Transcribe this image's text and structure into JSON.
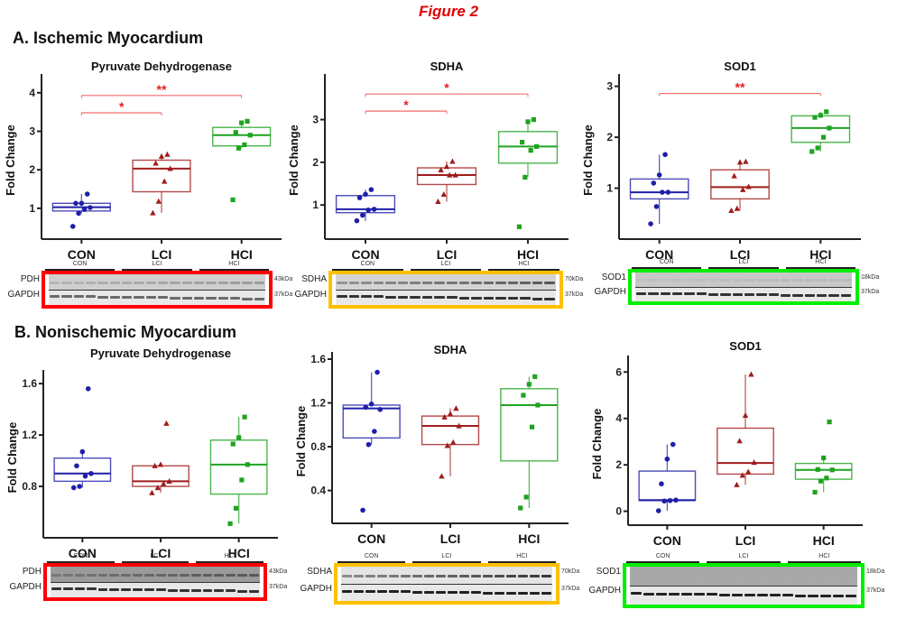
{
  "figure_title": "Figure 2",
  "sections": [
    {
      "title": "A. Ischemic Myocardium"
    },
    {
      "title": "B. Nonischemic Myocardium"
    }
  ],
  "colors": {
    "CON": "#1f1fa8",
    "LCI": "#a01c1c",
    "HCI": "#1fa31f",
    "significance": "#f26b6b",
    "frame_PDH": "#ff0000",
    "frame_SDHA": "#ffc000",
    "frame_SOD1": "#00ee00"
  },
  "chart_data": [
    {
      "type": "box",
      "section": "A",
      "title": "Pyruvate Dehydrogenase",
      "xlabel": "",
      "ylabel": "Fold Change",
      "categories": [
        "CON",
        "LCI",
        "HCI"
      ],
      "ylim": [
        0.2,
        4.3
      ],
      "yticks": [
        1,
        2,
        3,
        4
      ],
      "ytick_labels": [
        "1",
        "2",
        "3",
        "4"
      ],
      "grid": false,
      "series": [
        {
          "name": "CON",
          "marker": "circle",
          "points": [
            0.53,
            0.87,
            0.97,
            1.02,
            1.13,
            1.13,
            1.37
          ],
          "q1": 0.93,
          "median": 1.03,
          "q3": 1.13,
          "whisker_low": 0.87,
          "whisker_high": 1.37
        },
        {
          "name": "LCI",
          "marker": "triangle",
          "points": [
            0.88,
            1.18,
            1.7,
            2.03,
            2.17,
            2.35,
            2.4
          ],
          "q1": 1.43,
          "median": 2.03,
          "q3": 2.25,
          "whisker_low": 0.88,
          "whisker_high": 2.4
        },
        {
          "name": "HCI",
          "marker": "square",
          "points": [
            1.22,
            2.56,
            2.65,
            2.9,
            2.97,
            3.22,
            3.26
          ],
          "q1": 2.62,
          "median": 2.9,
          "q3": 3.1,
          "whisker_low": 2.56,
          "whisker_high": 3.26
        }
      ],
      "significance": [
        {
          "from": "CON",
          "to": "LCI",
          "y": 3.48,
          "label": "*"
        },
        {
          "from": "CON",
          "to": "HCI",
          "y": 3.93,
          "label": "**"
        }
      ]
    },
    {
      "type": "box",
      "section": "A",
      "title": "SDHA",
      "xlabel": "",
      "ylabel": "Fold Change",
      "categories": [
        "CON",
        "LCI",
        "HCI"
      ],
      "ylim": [
        0.2,
        3.9
      ],
      "yticks": [
        1,
        2,
        3
      ],
      "ytick_labels": [
        "1",
        "2",
        "3"
      ],
      "grid": false,
      "series": [
        {
          "name": "CON",
          "marker": "circle",
          "points": [
            0.63,
            0.76,
            0.88,
            0.9,
            1.17,
            1.25,
            1.36
          ],
          "q1": 0.82,
          "median": 0.9,
          "q3": 1.22,
          "whisker_low": 0.63,
          "whisker_high": 1.36
        },
        {
          "name": "LCI",
          "marker": "triangle",
          "points": [
            1.08,
            1.25,
            1.7,
            1.7,
            1.82,
            1.9,
            2.02
          ],
          "q1": 1.48,
          "median": 1.7,
          "q3": 1.87,
          "whisker_low": 1.08,
          "whisker_high": 2.02
        },
        {
          "name": "HCI",
          "marker": "square",
          "points": [
            0.49,
            1.65,
            2.28,
            2.37,
            2.47,
            2.95,
            3.0
          ],
          "q1": 1.98,
          "median": 2.37,
          "q3": 2.72,
          "whisker_low": 1.65,
          "whisker_high": 3.0
        }
      ],
      "significance": [
        {
          "from": "CON",
          "to": "LCI",
          "y": 3.2,
          "label": "*"
        },
        {
          "from": "CON",
          "to": "HCI",
          "y": 3.6,
          "label": "*"
        }
      ]
    },
    {
      "type": "box",
      "section": "A",
      "title": "SOD1",
      "xlabel": "",
      "ylabel": "Fold Change",
      "categories": [
        "CON",
        "LCI",
        "HCI"
      ],
      "ylim": [
        0.0,
        3.1
      ],
      "yticks": [
        1,
        2,
        3
      ],
      "ytick_labels": [
        "1",
        "2",
        "3"
      ],
      "grid": false,
      "series": [
        {
          "name": "CON",
          "marker": "circle",
          "points": [
            0.3,
            0.64,
            0.92,
            0.92,
            1.1,
            1.26,
            1.66
          ],
          "q1": 0.79,
          "median": 0.92,
          "q3": 1.18,
          "whisker_low": 0.3,
          "whisker_high": 1.66
        },
        {
          "name": "LCI",
          "marker": "triangle",
          "points": [
            0.56,
            0.6,
            0.97,
            1.03,
            1.24,
            1.51,
            1.52
          ],
          "q1": 0.79,
          "median": 1.02,
          "q3": 1.36,
          "whisker_low": 0.56,
          "whisker_high": 1.52
        },
        {
          "name": "HCI",
          "marker": "square",
          "points": [
            1.72,
            1.79,
            2.0,
            2.18,
            2.39,
            2.43,
            2.5
          ],
          "q1": 1.9,
          "median": 2.18,
          "q3": 2.42,
          "whisker_low": 1.72,
          "whisker_high": 2.5
        }
      ],
      "significance": [
        {
          "from": "CON",
          "to": "HCI",
          "y": 2.86,
          "label": "**"
        }
      ]
    },
    {
      "type": "box",
      "section": "B",
      "title": "Pyruvate Dehydrogenase",
      "xlabel": "",
      "ylabel": "Fold Change",
      "categories": [
        "CON",
        "LCI",
        "HCI"
      ],
      "ylim": [
        0.4,
        1.65
      ],
      "yticks": [
        0.8,
        1.2,
        1.6
      ],
      "ytick_labels": [
        "0.8",
        "1.2",
        "1.6"
      ],
      "grid": false,
      "series": [
        {
          "name": "CON",
          "marker": "circle",
          "points": [
            0.79,
            0.8,
            0.88,
            0.9,
            0.96,
            1.07,
            1.56
          ],
          "q1": 0.84,
          "median": 0.9,
          "q3": 1.02,
          "whisker_low": 0.79,
          "whisker_high": 1.07
        },
        {
          "name": "LCI",
          "marker": "triangle",
          "points": [
            0.75,
            0.79,
            0.82,
            0.84,
            0.96,
            0.97,
            1.29
          ],
          "q1": 0.8,
          "median": 0.84,
          "q3": 0.96,
          "whisker_low": 0.75,
          "whisker_high": 0.97
        },
        {
          "name": "HCI",
          "marker": "square",
          "points": [
            0.51,
            0.63,
            0.85,
            0.97,
            1.13,
            1.18,
            1.34
          ],
          "q1": 0.74,
          "median": 0.97,
          "q3": 1.16,
          "whisker_low": 0.51,
          "whisker_high": 1.34
        }
      ],
      "significance": []
    },
    {
      "type": "box",
      "section": "B",
      "title": "SDHA",
      "xlabel": "",
      "ylabel": "Fold Change",
      "categories": [
        "CON",
        "LCI",
        "HCI"
      ],
      "ylim": [
        0.1,
        1.6
      ],
      "yticks": [
        0.4,
        0.8,
        1.2,
        1.6
      ],
      "ytick_labels": [
        "0.4",
        "0.8",
        "1.2",
        "1.6"
      ],
      "grid": false,
      "series": [
        {
          "name": "CON",
          "marker": "circle",
          "points": [
            0.22,
            0.82,
            0.94,
            1.14,
            1.16,
            1.19,
            1.48
          ],
          "q1": 0.88,
          "median": 1.15,
          "q3": 1.18,
          "whisker_low": 0.82,
          "whisker_high": 1.48
        },
        {
          "name": "LCI",
          "marker": "triangle",
          "points": [
            0.53,
            0.81,
            0.84,
            0.99,
            1.07,
            1.1,
            1.15
          ],
          "q1": 0.82,
          "median": 0.99,
          "q3": 1.08,
          "whisker_low": 0.53,
          "whisker_high": 1.15
        },
        {
          "name": "HCI",
          "marker": "square",
          "points": [
            0.24,
            0.34,
            0.98,
            1.18,
            1.27,
            1.37,
            1.44
          ],
          "q1": 0.67,
          "median": 1.18,
          "q3": 1.33,
          "whisker_low": 0.24,
          "whisker_high": 1.44
        }
      ],
      "significance": []
    },
    {
      "type": "box",
      "section": "B",
      "title": "SOD1",
      "xlabel": "",
      "ylabel": "Fold Change",
      "categories": [
        "CON",
        "LCI",
        "HCI"
      ],
      "ylim": [
        -0.6,
        6.4
      ],
      "yticks": [
        0,
        2,
        4,
        6
      ],
      "ytick_labels": [
        "0",
        "2",
        "4",
        "6"
      ],
      "grid": false,
      "series": [
        {
          "name": "CON",
          "marker": "circle",
          "points": [
            0.02,
            0.44,
            0.46,
            0.48,
            1.18,
            2.25,
            2.88
          ],
          "q1": 0.46,
          "median": 0.48,
          "q3": 1.73,
          "whisker_low": 0.02,
          "whisker_high": 2.88
        },
        {
          "name": "LCI",
          "marker": "triangle",
          "points": [
            1.14,
            1.55,
            1.7,
            2.1,
            3.03,
            4.13,
            5.9
          ],
          "q1": 1.6,
          "median": 2.08,
          "q3": 3.58,
          "whisker_low": 1.14,
          "whisker_high": 5.9
        },
        {
          "name": "HCI",
          "marker": "square",
          "points": [
            0.82,
            1.3,
            1.43,
            1.78,
            1.8,
            2.3,
            3.85
          ],
          "q1": 1.38,
          "median": 1.78,
          "q3": 2.06,
          "whisker_low": 0.82,
          "whisker_high": 2.3
        }
      ],
      "significance": []
    }
  ],
  "blots": [
    {
      "target": "PDH",
      "target_kda": "43kDa",
      "loading": "GAPDH",
      "loading_kda": "37kDa",
      "groups": [
        "CON",
        "LCI",
        "HCI"
      ]
    },
    {
      "target": "SDHA",
      "target_kda": "70kDa",
      "loading": "GAPDH",
      "loading_kda": "37kDa",
      "groups": [
        "CON",
        "LCI",
        "HCI"
      ]
    },
    {
      "target": "SOD1",
      "target_kda": "18kDa",
      "loading": "GAPDH",
      "loading_kda": "37kDa",
      "groups": [
        "CON",
        "LCI",
        "HCI"
      ]
    },
    {
      "target": "PDH",
      "target_kda": "43kDa",
      "loading": "GAPDH",
      "loading_kda": "37kDa",
      "groups": [
        "CON",
        "LCI",
        "HCI"
      ]
    },
    {
      "target": "SDHA",
      "target_kda": "70kDa",
      "loading": "GAPDH",
      "loading_kda": "37kDa",
      "groups": [
        "CON",
        "LCI",
        "HCI"
      ]
    },
    {
      "target": "SOD1",
      "target_kda": "18kDa",
      "loading": "GAPDH",
      "loading_kda": "37kDa",
      "groups": [
        "CON",
        "LCI",
        "HCI"
      ]
    }
  ]
}
